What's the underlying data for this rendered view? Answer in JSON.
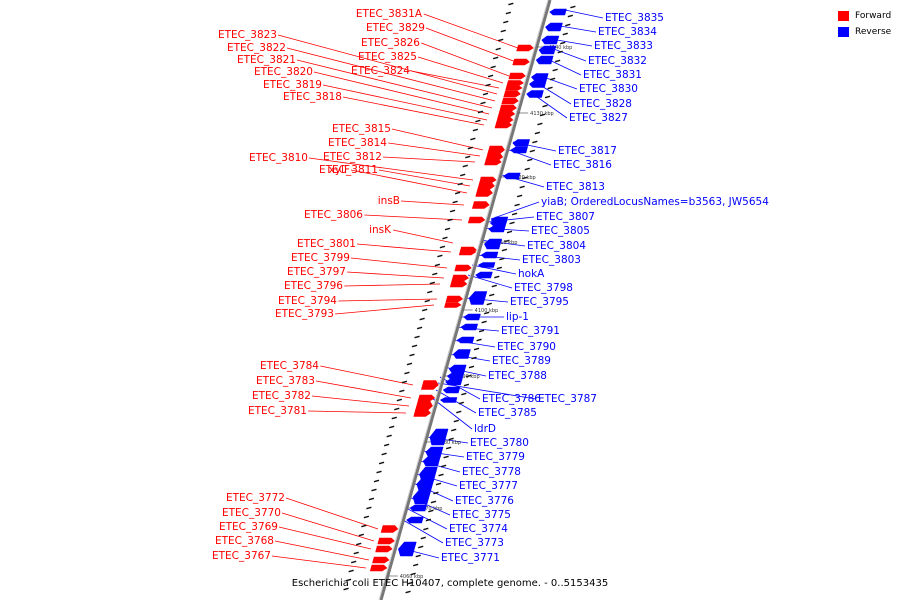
{
  "caption": "Escherichia coli ETEC H10407, complete genome. - 0..5153435",
  "legend": [
    {
      "label": "Forward",
      "color": "#ff0000"
    },
    {
      "label": "Reverse",
      "color": "#0000ff"
    }
  ],
  "colors": {
    "forward": "#ff0000",
    "reverse": "#0000ff",
    "backbone": "#888888"
  },
  "scale_ticks": [
    "4140 kbp",
    "4130 kbp",
    "4120 kbp",
    "4110 kbp",
    "4100 kbp",
    "4090 kbp",
    "4080 kbp",
    "4070 kbp",
    "4060 kbp"
  ],
  "forward_genes": [
    "ETEC_3831A",
    "ETEC_3829",
    "ETEC_3826",
    "ETEC_3825",
    "ETEC_3824",
    "ETEC_3823",
    "ETEC_3822",
    "ETEC_3821",
    "ETEC_3820",
    "ETEC_3819",
    "ETEC_3818",
    "ETEC_3815",
    "ETEC_3814",
    "ETEC_3812",
    "ETEC_3810",
    "ETEC_3811",
    "xylF",
    "insB",
    "ETEC_3806",
    "insK",
    "ETEC_3801",
    "ETEC_3799",
    "ETEC_3797",
    "ETEC_3796",
    "ETEC_3794",
    "ETEC_3793",
    "ETEC_3784",
    "ETEC_3783",
    "ETEC_3782",
    "ETEC_3781",
    "ETEC_3772",
    "ETEC_3770",
    "ETEC_3769",
    "ETEC_3768",
    "ETEC_3767"
  ],
  "reverse_genes": [
    "ETEC_3835",
    "ETEC_3834",
    "ETEC_3833",
    "ETEC_3832",
    "ETEC_3831",
    "ETEC_3830",
    "ETEC_3828",
    "ETEC_3827",
    "ETEC_3817",
    "ETEC_3816",
    "ETEC_3813",
    "yiaB; OrderedLocusNames=b3563, JW5654",
    "ETEC_3807",
    "ETEC_3805",
    "ETEC_3804",
    "ETEC_3803",
    "hokA",
    "ETEC_3798",
    "ETEC_3795",
    "lip-1",
    "ETEC_3791",
    "ETEC_3790",
    "ETEC_3789",
    "ETEC_3788",
    "ETEC_3786",
    "ETEC_3787",
    "ETEC_3785",
    "ldrD",
    "ETEC_3780",
    "ETEC_3779",
    "ETEC_3778",
    "ETEC_3777",
    "ETEC_3776",
    "ETEC_3775",
    "ETEC_3774",
    "ETEC_3773",
    "ETEC_3771"
  ]
}
